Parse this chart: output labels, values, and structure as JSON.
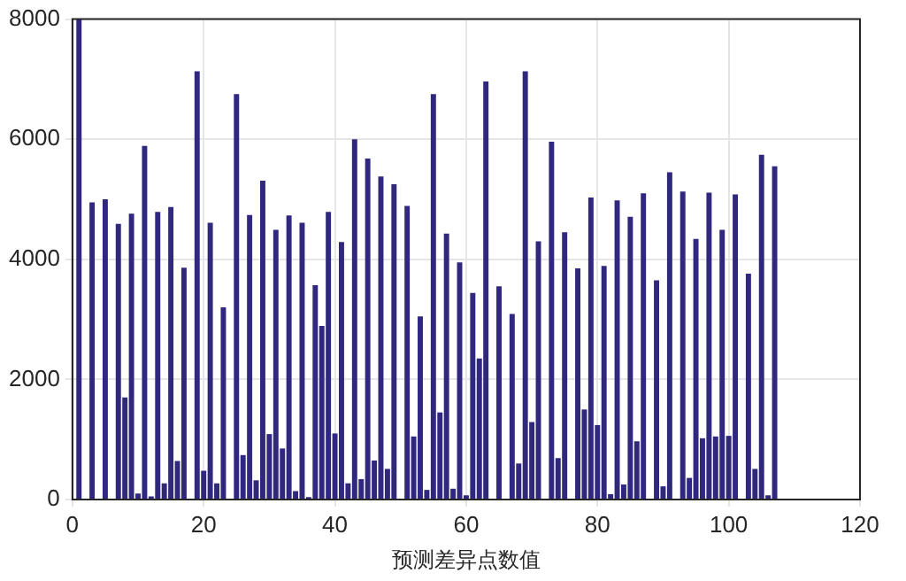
{
  "chart_data": {
    "type": "bar",
    "xlabel": "预测差异点数值",
    "x": [
      1,
      2,
      3,
      4,
      5,
      6,
      7,
      8,
      9,
      10,
      11,
      12,
      13,
      14,
      15,
      16,
      17,
      18,
      19,
      20,
      21,
      22,
      23,
      24,
      25,
      26,
      27,
      28,
      29,
      30,
      31,
      32,
      33,
      34,
      35,
      36,
      37,
      38,
      39,
      40,
      41,
      42,
      43,
      44,
      45,
      46,
      47,
      48,
      49,
      50,
      51,
      52,
      53,
      54,
      55,
      56,
      57,
      58,
      59,
      60,
      61,
      62,
      63,
      64,
      65,
      66,
      67,
      68,
      69,
      70,
      71,
      72,
      73,
      74,
      75,
      76,
      77,
      78,
      79,
      80,
      81,
      82,
      83,
      84,
      85,
      86,
      87,
      88,
      89,
      90,
      91,
      92,
      93,
      94,
      95,
      96,
      97,
      98,
      99,
      100,
      101,
      102,
      103,
      104,
      105,
      106,
      107
    ],
    "values": [
      8000,
      0,
      4950,
      0,
      5000,
      0,
      4590,
      1700,
      4760,
      100,
      5890,
      50,
      4790,
      270,
      4870,
      640,
      3860,
      0,
      7130,
      480,
      4610,
      270,
      3200,
      0,
      6750,
      740,
      4740,
      320,
      5310,
      1090,
      4490,
      850,
      4730,
      140,
      4610,
      40,
      3570,
      2890,
      4790,
      1100,
      4290,
      270,
      6000,
      340,
      5680,
      650,
      5380,
      510,
      5250,
      0,
      4890,
      1050,
      3050,
      160,
      6750,
      1450,
      4430,
      180,
      3950,
      70,
      3440,
      2350,
      6960,
      0,
      3550,
      0,
      3090,
      600,
      7130,
      1290,
      4300,
      0,
      5960,
      690,
      4450,
      0,
      3850,
      1500,
      5030,
      1240,
      3890,
      90,
      4980,
      250,
      4710,
      970,
      5100,
      0,
      3650,
      220,
      5450,
      0,
      5130,
      360,
      4340,
      1020,
      5110,
      1050,
      4490,
      1060,
      5080,
      0,
      3760,
      510,
      5740,
      70,
      5550
    ],
    "color": "#30287e",
    "xlim": [
      0,
      120
    ],
    "xticks": [
      0,
      20,
      40,
      60,
      80,
      100,
      120
    ],
    "ylim": [
      0,
      8000
    ],
    "yticks": [
      0,
      2000,
      4000,
      6000,
      8000
    ],
    "grid": true
  }
}
